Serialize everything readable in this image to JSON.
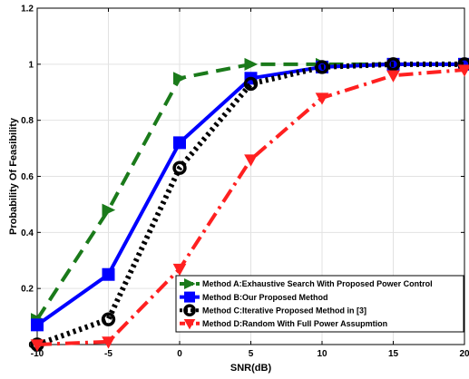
{
  "chart_data": {
    "type": "line",
    "xlabel": "SNR(dB)",
    "ylabel": "Probability Of Feasibility",
    "x": [
      -10,
      -5,
      0,
      5,
      10,
      15,
      20
    ],
    "xlim": [
      -10,
      20
    ],
    "ylim": [
      0,
      1.2
    ],
    "xticks": [
      "-10",
      "-5",
      "0",
      "5",
      "10",
      "15",
      "20"
    ],
    "yticks": [
      "0",
      "0.2",
      "0.4",
      "0.6",
      "0.8",
      "1",
      "1.2"
    ],
    "grid": true,
    "legend_position": "bottom-right",
    "series": [
      {
        "name": "Method A:Exhaustive Search With Proposed Power Control",
        "values": [
          0.09,
          0.48,
          0.95,
          1.0,
          1.0,
          1.0,
          1.0
        ],
        "color": "#1a7a1a",
        "marker": "triangle-right",
        "dash": "dashed"
      },
      {
        "name": "Method B:Our Proposed Method",
        "values": [
          0.07,
          0.25,
          0.72,
          0.95,
          0.99,
          1.0,
          1.0
        ],
        "color": "#0000ff",
        "marker": "square",
        "dash": "solid"
      },
      {
        "name": "Method C:Iterative Proposed Method in [3]",
        "values": [
          0.0,
          0.09,
          0.63,
          0.93,
          0.99,
          1.0,
          1.0
        ],
        "color": "#000000",
        "marker": "circle",
        "dash": "dotted"
      },
      {
        "name": "Method D:Random With Full Power Assupmtion",
        "values": [
          0.0,
          0.01,
          0.27,
          0.66,
          0.88,
          0.96,
          0.98
        ],
        "color": "#ff2020",
        "marker": "triangle-down",
        "dash": "dashdot"
      }
    ]
  }
}
